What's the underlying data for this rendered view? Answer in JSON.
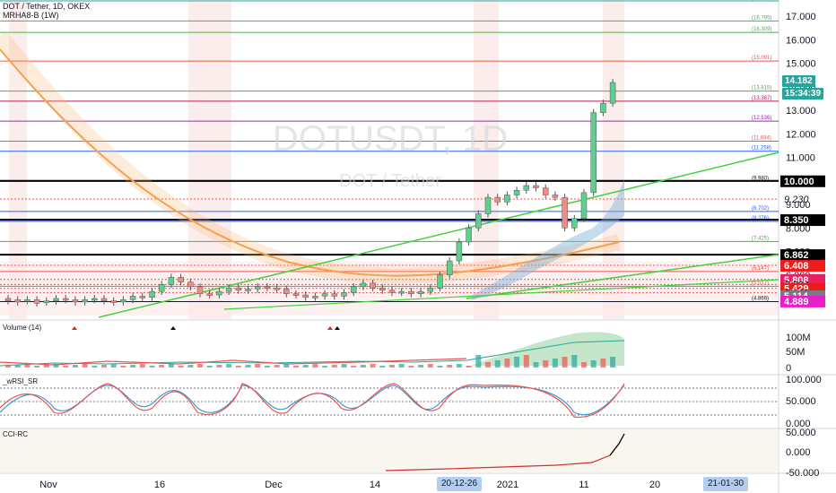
{
  "header": {
    "title": "DOT / Tether, 1D, OKEX",
    "indicator": "MRHA8-B (1W)"
  },
  "watermark": {
    "symbol": "DOTUSDT, 1D",
    "name": "DOT / Tether"
  },
  "price_axis": {
    "ticks": [
      "17.000",
      "16.000",
      "15.000",
      "14.000",
      "13.000",
      "12.000",
      "11.000",
      "10.000",
      "9.000",
      "8.000",
      "7.000",
      "6.000",
      "5.000"
    ],
    "last_price": "14.182",
    "countdown": "15:34:39",
    "colors": {
      "last_price": "#26a69a",
      "countdown": "#26a69a"
    }
  },
  "level_lines": [
    {
      "price": "17.647",
      "label": "(17.647)",
      "color": "#26a69a"
    },
    {
      "price": "16.795",
      "label": "(16.795)",
      "color": "#4caf50"
    },
    {
      "price": "16.309",
      "label": "(16.309)",
      "color": "#4caf50"
    },
    {
      "price": "15.091",
      "label": "(15.091)",
      "color": "#ef5350"
    },
    {
      "price": "13.815",
      "label": "(13.815)",
      "color": "#4caf50"
    },
    {
      "price": "13.387",
      "label": "(13.387)",
      "color": "#c2185b"
    },
    {
      "price": "12.536",
      "label": "(12.536)",
      "color": "#9c27b0"
    },
    {
      "price": "11.684",
      "label": "(11.684)",
      "color": "#ef5350"
    },
    {
      "price": "11.258",
      "label": "(11.258)",
      "color": "#2962ff"
    },
    {
      "price": "9.980",
      "label": "(9.980)",
      "color": "#131722"
    },
    {
      "price": "8.702",
      "label": "(8.702)",
      "color": "#2962ff"
    },
    {
      "price": "8.276",
      "label": "(8.276)",
      "color": "#2962ff"
    },
    {
      "price": "7.425",
      "label": "(7.425)",
      "color": "#4caf50"
    },
    {
      "price": "6.147",
      "label": "(6.147)",
      "color": "#ef5350"
    },
    {
      "price": "5.517",
      "label": "(5.517)",
      "color": "#ef5350"
    },
    {
      "price": "4.869",
      "label": "(4.869)",
      "color": "#131722"
    }
  ],
  "axis_tags": [
    {
      "text": "10.000",
      "price": "10.000",
      "bg": "#000000",
      "fg": "#ffffff"
    },
    {
      "text": "9.230",
      "price": "9.230",
      "bg": "transparent",
      "fg": "#131722",
      "italic": true
    },
    {
      "text": "8.350",
      "price": "8.350",
      "bg": "#000000",
      "fg": "#ffffff"
    },
    {
      "text": "6.862",
      "price": "6.862",
      "bg": "#000000",
      "fg": "#ffffff"
    },
    {
      "text": "6.408",
      "price": "6.408",
      "bg": "#ef1c1c",
      "fg": "#ffffff"
    },
    {
      "text": "5.808",
      "price": "5.808",
      "bg": "#e91e63",
      "fg": "#ffffff"
    },
    {
      "text": "5.594",
      "price": "5.594",
      "bg": "transparent",
      "fg": "#131722",
      "italic": true
    },
    {
      "text": "5.429",
      "price": "5.429",
      "bg": "#ef1c1c",
      "fg": "#ffffff"
    },
    {
      "text": "5.243",
      "price": "5.243",
      "bg": "transparent",
      "fg": "#131722",
      "italic": true
    },
    {
      "text": "5.114",
      "price": "5.114",
      "bg": "#787b86",
      "fg": "#ffffff"
    },
    {
      "text": "4.889",
      "price": "4.889",
      "bg": "#e91ec8",
      "fg": "#ffffff"
    }
  ],
  "volume_pane": {
    "label": "Volume (14)",
    "ticks": [
      "100M",
      "50M",
      "0"
    ]
  },
  "rsi_pane": {
    "label": "_wRSI_SR",
    "ticks": [
      "100.000",
      "50.000",
      "0.000"
    ]
  },
  "cci_pane": {
    "label": "CCI-RC",
    "ticks": [
      "50.000",
      "0.000",
      "-50.000"
    ]
  },
  "time_axis": {
    "labels": [
      "Nov",
      "16",
      "Dec",
      "14",
      "2021",
      "11",
      "20"
    ],
    "highlight_start": "20-12-26",
    "highlight_end": "21-01-30"
  }
}
